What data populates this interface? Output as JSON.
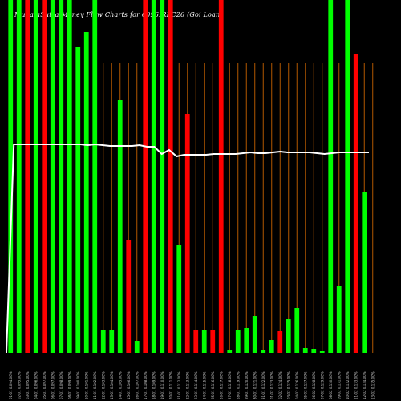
{
  "chart_data": {
    "type": "bar",
    "title": "MunafaSutra Money Flow Charts for 6096IRFC26 (Goi Loan",
    "title_parts": [
      "Munafa",
      "Money Flow",
      "Charts for",
      "6096IRFC26",
      "MunafaSutra.com",
      "(Goi",
      "Loan"
    ],
    "ylim": [
      0,
      440
    ],
    "colors": {
      "up": "#00ff00",
      "down": "#ff0000",
      "line": "#ffffff",
      "grid": "#b35900",
      "bg": "#000000"
    },
    "x": [
      "01-01 0.094.00%",
      "02-01 0.095.00%",
      "03-01 0.095.00%",
      "04-01 0.096.00%",
      "05-01 0.097.00%",
      "06-01 0.097.00%",
      "07-01 0.098.00%",
      "08-01 0.099.00%",
      "09-01 0.100.00%",
      "10-01 0.101.00%",
      "11-01 0.102.00%",
      "12-01 0.103.00%",
      "13-01 0.104.00%",
      "14-01 0.105.00%",
      "15-01 0.106.00%",
      "16-01 0.107.00%",
      "17-01 0.108.00%",
      "18-01 0.109.00%",
      "19-01 0.110.00%",
      "20-01 0.111.00%",
      "21-01 0.112.00%",
      "22-01 0.113.00%",
      "23-01 0.114.00%",
      "24-01 0.115.00%",
      "25-01 0.116.00%",
      "26-01 0.117.00%",
      "27-01 0.118.00%",
      "28-01 0.119.00%",
      "29-01 0.120.00%",
      "30-01 0.121.00%",
      "31-01 0.122.00%",
      "01-02 0.123.00%",
      "02-02 0.124.00%",
      "03-02 0.125.00%",
      "04-02 0.126.00%",
      "05-02 0.127.00%",
      "06-02 0.128.00%",
      "07-02 0.129.00%",
      "08-02 0.130.00%",
      "09-02 0.131.00%",
      "10-02 0.132.00%",
      "11-02 0.133.00%",
      "12-02 0.134.00%",
      "13-02 0.135.00%"
    ],
    "series": [
      {
        "values": [
          440,
          440,
          440,
          440,
          440,
          440,
          440,
          440,
          440,
          440,
          440,
          440,
          440,
          440,
          440,
          440,
          440,
          440,
          440,
          440,
          440,
          440,
          440,
          440,
          440,
          440,
          440,
          440,
          440,
          440,
          440,
          440,
          440,
          440,
          440,
          440,
          440,
          440,
          440,
          440,
          440,
          440,
          440,
          440
        ],
        "bars": [
          440,
          440,
          440,
          440,
          440,
          440,
          440,
          440,
          381,
          400,
          440,
          28,
          28,
          315,
          141,
          15,
          440,
          440,
          440,
          440,
          135,
          298,
          28,
          28,
          28,
          440,
          3,
          28,
          31,
          46,
          3,
          16,
          27,
          42,
          56,
          6,
          5,
          2,
          440,
          83,
          440,
          373,
          201,
          0
        ]
      },
      {
        "colors": [
          "up",
          "up",
          "down",
          "up",
          "down",
          "up",
          "up",
          "up",
          "up",
          "up",
          "up",
          "up",
          "up",
          "up",
          "down",
          "up",
          "down",
          "up",
          "up",
          "down",
          "up",
          "down",
          "down",
          "up",
          "down",
          "down",
          "up",
          "up",
          "up",
          "up",
          "up",
          "up",
          "down",
          "up",
          "up",
          "up",
          "up",
          "up",
          "up",
          "up",
          "up",
          "down",
          "up",
          "up"
        ]
      }
    ],
    "price_line": [
      440,
      180,
      180,
      180,
      180,
      180,
      180,
      180,
      180,
      180,
      180,
      181,
      180,
      181,
      182,
      182,
      182,
      182,
      181,
      183,
      183,
      192,
      187,
      195,
      193,
      193,
      193,
      193,
      192,
      192,
      192,
      192,
      191,
      190,
      191,
      191,
      190,
      189,
      190,
      190,
      190,
      190,
      191,
      192,
      191,
      190,
      190,
      190,
      190,
      190
    ],
    "grid": true
  }
}
